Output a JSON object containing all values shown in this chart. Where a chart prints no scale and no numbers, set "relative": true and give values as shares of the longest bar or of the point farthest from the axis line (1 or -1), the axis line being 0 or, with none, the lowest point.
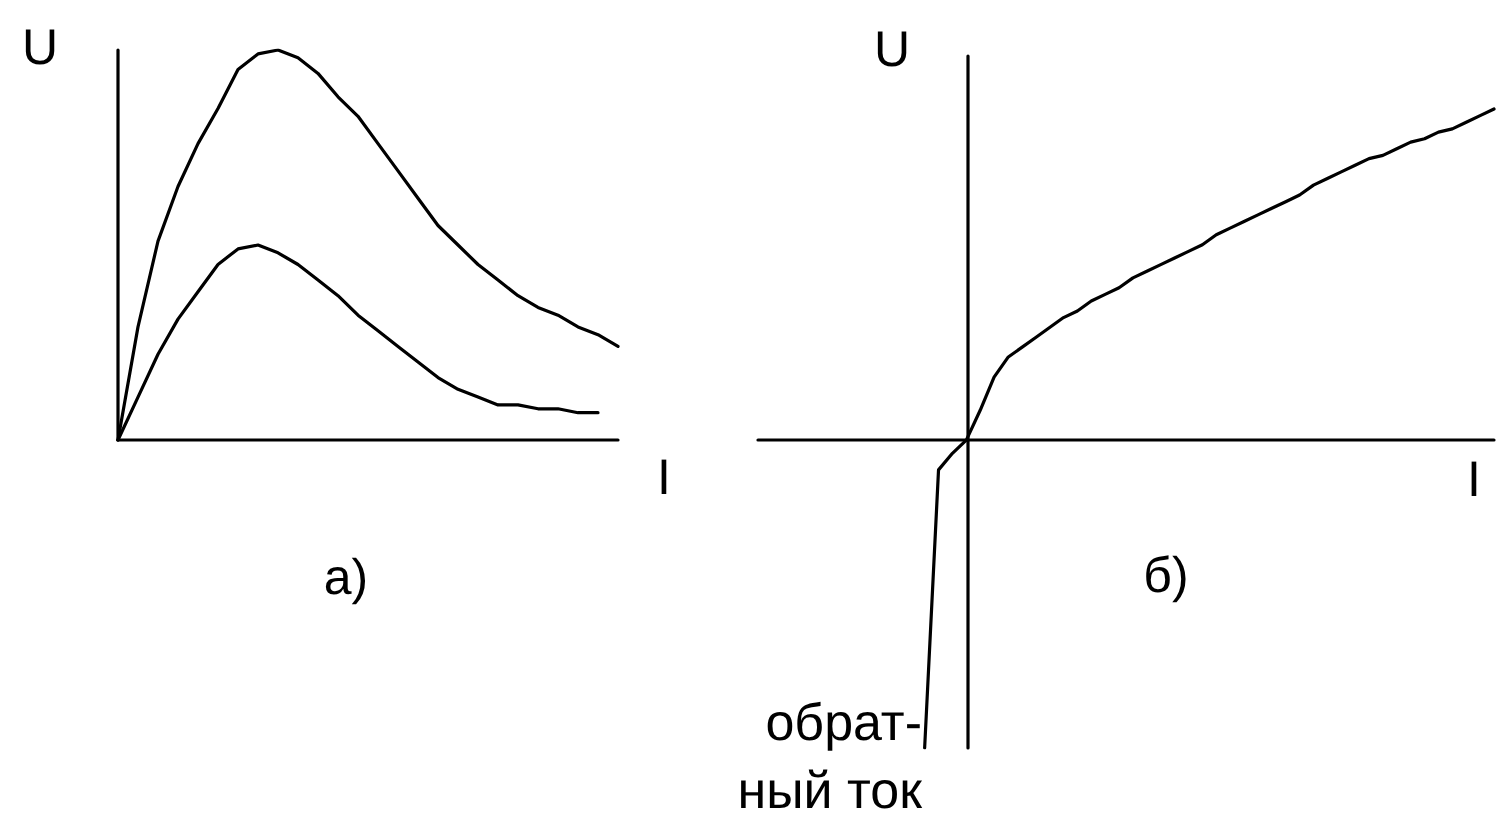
{
  "chart_data": [
    {
      "type": "line",
      "title": "а)",
      "xlabel": "I",
      "ylabel": "U",
      "relative": true,
      "marker": "none",
      "categories": [
        null,
        null,
        null,
        null,
        null,
        null,
        null,
        null,
        null,
        null,
        null,
        null,
        null,
        null,
        null,
        null,
        null,
        null,
        null,
        null,
        null,
        null,
        null,
        null,
        null,
        null
      ],
      "series": [
        {
          "color": "#000000",
          "values": [
            0,
            0.29,
            0.51,
            0.65,
            0.76,
            0.85,
            0.95,
            0.99,
            1,
            0.98,
            0.94,
            0.88,
            0.83,
            0.76,
            0.69,
            0.62,
            0.55,
            0.5,
            0.45,
            0.41,
            0.37,
            0.34,
            0.32,
            0.29,
            0.27,
            0.24
          ]
        },
        {
          "color": "#000000",
          "values": [
            0,
            0.11,
            0.22,
            0.31,
            0.38,
            0.45,
            0.49,
            0.5,
            0.48,
            0.45,
            0.41,
            0.37,
            0.32,
            0.28,
            0.24,
            0.2,
            0.16,
            0.13,
            0.11,
            0.09,
            0.09,
            0.08,
            0.08,
            0.07,
            0.07,
            null
          ]
        }
      ]
    },
    {
      "type": "line",
      "title": "б)",
      "xlabel": "I",
      "ylabel": "U",
      "relative": true,
      "marker": "none",
      "annotations": [
        "обрат-\nный ток"
      ],
      "categories": [
        null,
        null,
        null,
        null,
        null,
        null,
        null,
        null,
        null,
        null,
        null,
        null,
        null,
        null,
        null,
        null,
        null,
        null,
        null,
        null,
        null,
        null,
        null,
        null,
        null,
        null,
        null,
        null,
        null,
        null,
        null,
        null,
        null,
        null,
        null,
        null,
        null,
        null,
        null,
        null,
        null,
        null,
        null,
        null,
        null,
        null,
        null,
        null,
        null,
        null,
        null,
        null,
        null,
        null
      ],
      "series": [
        {
          "color": "#000000",
          "values": [
            null,
            null,
            null,
            null,
            null,
            null,
            null,
            null,
            null,
            null,
            null,
            null,
            -0.93,
            -0.09,
            -0.04,
            0,
            0.09,
            0.19,
            0.25,
            0.28,
            0.31,
            0.34,
            0.37,
            0.39,
            0.42,
            0.44,
            0.46,
            0.49,
            0.51,
            0.53,
            0.55,
            0.57,
            0.59,
            0.62,
            0.64,
            0.66,
            0.68,
            0.7,
            0.72,
            0.74,
            0.77,
            0.79,
            0.81,
            0.83,
            0.85,
            0.86,
            0.88,
            0.9,
            0.91,
            0.93,
            0.94,
            0.96,
            0.98,
            1
          ]
        }
      ]
    }
  ]
}
